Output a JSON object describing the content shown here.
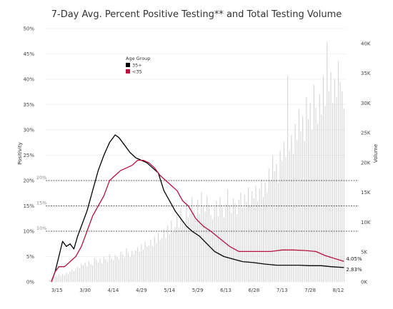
{
  "colors": {
    "bars": "#d4d4d4",
    "older": "#000000",
    "younger": "#b5123f",
    "grid": "#eeeeee",
    "reference": "#333333"
  },
  "chart_data": {
    "type": "line",
    "title": "7-Day Avg. Percent Positive Testing** and Total Testing Volume",
    "ylabel": "Positivity",
    "y2label": "Volume",
    "ylim": [
      0,
      50
    ],
    "y2lim": [
      0,
      42500
    ],
    "x_start": "2020-03-09",
    "x_end": "2020-08-16",
    "x_ticks": [
      {
        "date": "2020-03-15",
        "label": "3/15"
      },
      {
        "date": "2020-03-30",
        "label": "3/30"
      },
      {
        "date": "2020-04-14",
        "label": "4/14"
      },
      {
        "date": "2020-04-29",
        "label": "4/29"
      },
      {
        "date": "2020-05-14",
        "label": "5/14"
      },
      {
        "date": "2020-05-29",
        "label": "5/29"
      },
      {
        "date": "2020-06-13",
        "label": "6/13"
      },
      {
        "date": "2020-06-28",
        "label": "6/28"
      },
      {
        "date": "2020-07-13",
        "label": "7/13"
      },
      {
        "date": "2020-07-28",
        "label": "7/28"
      },
      {
        "date": "2020-08-12",
        "label": "8/12"
      }
    ],
    "y_ticks": [
      {
        "value": 0,
        "label": "0%"
      },
      {
        "value": 5,
        "label": "5%"
      },
      {
        "value": 10,
        "label": "10%"
      },
      {
        "value": 15,
        "label": "15%"
      },
      {
        "value": 20,
        "label": "20%"
      },
      {
        "value": 25,
        "label": "25%"
      },
      {
        "value": 30,
        "label": "30%"
      },
      {
        "value": 35,
        "label": "35%"
      },
      {
        "value": 40,
        "label": "40%"
      },
      {
        "value": 45,
        "label": "45%"
      },
      {
        "value": 50,
        "label": "50%"
      }
    ],
    "y2_ticks": [
      {
        "value": 0,
        "label": "0K"
      },
      {
        "value": 5000,
        "label": "5K"
      },
      {
        "value": 10000,
        "label": "10K"
      },
      {
        "value": 15000,
        "label": "15K"
      },
      {
        "value": 20000,
        "label": "20K"
      },
      {
        "value": 25000,
        "label": "25K"
      },
      {
        "value": 30000,
        "label": "30K"
      },
      {
        "value": 35000,
        "label": "35K"
      },
      {
        "value": 40000,
        "label": "40K"
      }
    ],
    "reference_lines": [
      {
        "value": 20,
        "label": "20%"
      },
      {
        "value": 15,
        "label": "15%"
      },
      {
        "value": 10,
        "label": "10%"
      }
    ],
    "legend": {
      "title": "Age Group",
      "position": "top-left",
      "items": [
        {
          "label": "35+",
          "color": "#000000"
        },
        {
          "label": "<35",
          "color": "#b5123f"
        }
      ]
    },
    "series": [
      {
        "name": "35+",
        "end_label": "2.83%",
        "points": [
          [
            "2020-03-12",
            0
          ],
          [
            "2020-03-14",
            2
          ],
          [
            "2020-03-16",
            5
          ],
          [
            "2020-03-18",
            8
          ],
          [
            "2020-03-20",
            7
          ],
          [
            "2020-03-22",
            7.5
          ],
          [
            "2020-03-24",
            6.5
          ],
          [
            "2020-03-26",
            9
          ],
          [
            "2020-03-28",
            11
          ],
          [
            "2020-03-31",
            14
          ],
          [
            "2020-04-03",
            18
          ],
          [
            "2020-04-06",
            22
          ],
          [
            "2020-04-09",
            25
          ],
          [
            "2020-04-12",
            27.5
          ],
          [
            "2020-04-15",
            29
          ],
          [
            "2020-04-17",
            28.5
          ],
          [
            "2020-04-20",
            27
          ],
          [
            "2020-04-23",
            25.5
          ],
          [
            "2020-04-26",
            24.5
          ],
          [
            "2020-04-29",
            24
          ],
          [
            "2020-05-02",
            23.5
          ],
          [
            "2020-05-05",
            22.5
          ],
          [
            "2020-05-08",
            21.5
          ],
          [
            "2020-05-11",
            18
          ],
          [
            "2020-05-14",
            16
          ],
          [
            "2020-05-17",
            14
          ],
          [
            "2020-05-20",
            12.5
          ],
          [
            "2020-05-23",
            11
          ],
          [
            "2020-05-26",
            10
          ],
          [
            "2020-05-30",
            9
          ],
          [
            "2020-06-03",
            7.5
          ],
          [
            "2020-06-07",
            6
          ],
          [
            "2020-06-12",
            5
          ],
          [
            "2020-06-17",
            4.5
          ],
          [
            "2020-06-22",
            4
          ],
          [
            "2020-06-28",
            3.8
          ],
          [
            "2020-07-04",
            3.5
          ],
          [
            "2020-07-10",
            3.3
          ],
          [
            "2020-07-16",
            3.3
          ],
          [
            "2020-07-22",
            3.3
          ],
          [
            "2020-07-28",
            3.2
          ],
          [
            "2020-08-03",
            3.2
          ],
          [
            "2020-08-08",
            3.0
          ],
          [
            "2020-08-15",
            2.83
          ]
        ]
      },
      {
        "name": "<35",
        "end_label": "4.05%",
        "points": [
          [
            "2020-03-12",
            0
          ],
          [
            "2020-03-14",
            2
          ],
          [
            "2020-03-16",
            3
          ],
          [
            "2020-03-19",
            3
          ],
          [
            "2020-03-22",
            4
          ],
          [
            "2020-03-25",
            5
          ],
          [
            "2020-03-28",
            7
          ],
          [
            "2020-03-31",
            10
          ],
          [
            "2020-04-03",
            13
          ],
          [
            "2020-04-06",
            15
          ],
          [
            "2020-04-09",
            17
          ],
          [
            "2020-04-12",
            20
          ],
          [
            "2020-04-15",
            21
          ],
          [
            "2020-04-18",
            22
          ],
          [
            "2020-04-21",
            22.5
          ],
          [
            "2020-04-24",
            23
          ],
          [
            "2020-04-27",
            24
          ],
          [
            "2020-04-30",
            24
          ],
          [
            "2020-05-03",
            23.5
          ],
          [
            "2020-05-06",
            22.5
          ],
          [
            "2020-05-09",
            21
          ],
          [
            "2020-05-12",
            20
          ],
          [
            "2020-05-15",
            19
          ],
          [
            "2020-05-18",
            18
          ],
          [
            "2020-05-21",
            16
          ],
          [
            "2020-05-24",
            15
          ],
          [
            "2020-05-28",
            12.5
          ],
          [
            "2020-06-01",
            11
          ],
          [
            "2020-06-05",
            10
          ],
          [
            "2020-06-10",
            8.5
          ],
          [
            "2020-06-15",
            7
          ],
          [
            "2020-06-20",
            6
          ],
          [
            "2020-06-25",
            6
          ],
          [
            "2020-07-01",
            6
          ],
          [
            "2020-07-07",
            6
          ],
          [
            "2020-07-13",
            6.3
          ],
          [
            "2020-07-19",
            6.3
          ],
          [
            "2020-07-25",
            6.2
          ],
          [
            "2020-07-31",
            6
          ],
          [
            "2020-08-05",
            5.2
          ],
          [
            "2020-08-10",
            4.6
          ],
          [
            "2020-08-15",
            4.05
          ]
        ]
      }
    ],
    "volume": [
      [
        "2020-03-11",
        300
      ],
      [
        "2020-03-12",
        600
      ],
      [
        "2020-03-13",
        700
      ],
      [
        "2020-03-14",
        900
      ],
      [
        "2020-03-15",
        1000
      ],
      [
        "2020-03-16",
        1200
      ],
      [
        "2020-03-17",
        1000
      ],
      [
        "2020-03-18",
        1300
      ],
      [
        "2020-03-19",
        1100
      ],
      [
        "2020-03-20",
        1500
      ],
      [
        "2020-03-21",
        1300
      ],
      [
        "2020-03-22",
        1700
      ],
      [
        "2020-03-23",
        2000
      ],
      [
        "2020-03-24",
        1800
      ],
      [
        "2020-03-25",
        2200
      ],
      [
        "2020-03-26",
        2500
      ],
      [
        "2020-03-27",
        2300
      ],
      [
        "2020-03-28",
        3000
      ],
      [
        "2020-03-29",
        2800
      ],
      [
        "2020-03-30",
        3200
      ],
      [
        "2020-03-31",
        2600
      ],
      [
        "2020-04-01",
        3500
      ],
      [
        "2020-04-02",
        3000
      ],
      [
        "2020-04-03",
        2800
      ],
      [
        "2020-04-04",
        4000
      ],
      [
        "2020-04-05",
        3700
      ],
      [
        "2020-04-06",
        3300
      ],
      [
        "2020-04-07",
        3900
      ],
      [
        "2020-04-08",
        3100
      ],
      [
        "2020-04-09",
        4200
      ],
      [
        "2020-04-10",
        3800
      ],
      [
        "2020-04-11",
        3400
      ],
      [
        "2020-04-12",
        4600
      ],
      [
        "2020-04-13",
        3900
      ],
      [
        "2020-04-14",
        3600
      ],
      [
        "2020-04-15",
        4500
      ],
      [
        "2020-04-16",
        4200
      ],
      [
        "2020-04-17",
        3800
      ],
      [
        "2020-04-18",
        5000
      ],
      [
        "2020-04-19",
        4600
      ],
      [
        "2020-04-20",
        4100
      ],
      [
        "2020-04-21",
        5600
      ],
      [
        "2020-04-22",
        4900
      ],
      [
        "2020-04-23",
        4200
      ],
      [
        "2020-04-24",
        5200
      ],
      [
        "2020-04-25",
        4600
      ],
      [
        "2020-04-26",
        5300
      ],
      [
        "2020-04-27",
        5800
      ],
      [
        "2020-04-28",
        5000
      ],
      [
        "2020-04-29",
        6300
      ],
      [
        "2020-04-30",
        5400
      ],
      [
        "2020-05-01",
        6700
      ],
      [
        "2020-05-02",
        5900
      ],
      [
        "2020-05-03",
        6100
      ],
      [
        "2020-05-04",
        7000
      ],
      [
        "2020-05-05",
        6000
      ],
      [
        "2020-05-06",
        7600
      ],
      [
        "2020-05-07",
        6500
      ],
      [
        "2020-05-08",
        8200
      ],
      [
        "2020-05-09",
        7000
      ],
      [
        "2020-05-10",
        7400
      ],
      [
        "2020-05-11",
        8800
      ],
      [
        "2020-05-12",
        7300
      ],
      [
        "2020-05-13",
        9400
      ],
      [
        "2020-05-14",
        8000
      ],
      [
        "2020-05-15",
        10300
      ],
      [
        "2020-05-16",
        8400
      ],
      [
        "2020-05-17",
        9200
      ],
      [
        "2020-05-18",
        11000
      ],
      [
        "2020-05-19",
        9100
      ],
      [
        "2020-05-20",
        12300
      ],
      [
        "2020-05-21",
        10000
      ],
      [
        "2020-05-22",
        9500
      ],
      [
        "2020-05-23",
        13000
      ],
      [
        "2020-05-24",
        10800
      ],
      [
        "2020-05-25",
        11500
      ],
      [
        "2020-05-26",
        14200
      ],
      [
        "2020-05-27",
        12000
      ],
      [
        "2020-05-28",
        10600
      ],
      [
        "2020-05-29",
        13800
      ],
      [
        "2020-05-30",
        11400
      ],
      [
        "2020-05-31",
        15000
      ],
      [
        "2020-06-01",
        12600
      ],
      [
        "2020-06-02",
        11800
      ],
      [
        "2020-06-03",
        14400
      ],
      [
        "2020-06-04",
        13000
      ],
      [
        "2020-06-05",
        11200
      ],
      [
        "2020-06-06",
        10500
      ],
      [
        "2020-06-07",
        12600
      ],
      [
        "2020-06-08",
        13600
      ],
      [
        "2020-06-09",
        11000
      ],
      [
        "2020-06-10",
        14200
      ],
      [
        "2020-06-11",
        12400
      ],
      [
        "2020-06-12",
        10800
      ],
      [
        "2020-06-13",
        13000
      ],
      [
        "2020-06-14",
        15500
      ],
      [
        "2020-06-15",
        12800
      ],
      [
        "2020-06-16",
        11500
      ],
      [
        "2020-06-17",
        14000
      ],
      [
        "2020-06-18",
        13200
      ],
      [
        "2020-06-19",
        11400
      ],
      [
        "2020-06-20",
        13800
      ],
      [
        "2020-06-21",
        15000
      ],
      [
        "2020-06-22",
        12500
      ],
      [
        "2020-06-23",
        14600
      ],
      [
        "2020-06-24",
        13400
      ],
      [
        "2020-06-25",
        15800
      ],
      [
        "2020-06-26",
        12800
      ],
      [
        "2020-06-27",
        15200
      ],
      [
        "2020-06-28",
        14000
      ],
      [
        "2020-06-29",
        16200
      ],
      [
        "2020-06-30",
        13500
      ],
      [
        "2020-07-01",
        15600
      ],
      [
        "2020-07-02",
        17200
      ],
      [
        "2020-07-03",
        14200
      ],
      [
        "2020-07-04",
        16600
      ],
      [
        "2020-07-05",
        15000
      ],
      [
        "2020-07-06",
        19000
      ],
      [
        "2020-07-07",
        17000
      ],
      [
        "2020-07-08",
        21200
      ],
      [
        "2020-07-09",
        18500
      ],
      [
        "2020-07-10",
        19800
      ],
      [
        "2020-07-11",
        16500
      ],
      [
        "2020-07-12",
        22000
      ],
      [
        "2020-07-13",
        20200
      ],
      [
        "2020-07-14",
        23500
      ],
      [
        "2020-07-15",
        21000
      ],
      [
        "2020-07-16",
        34500
      ],
      [
        "2020-07-17",
        22000
      ],
      [
        "2020-07-18",
        24600
      ],
      [
        "2020-07-19",
        21500
      ],
      [
        "2020-07-20",
        26500
      ],
      [
        "2020-07-21",
        23800
      ],
      [
        "2020-07-22",
        29000
      ],
      [
        "2020-07-23",
        25200
      ],
      [
        "2020-07-24",
        27800
      ],
      [
        "2020-07-25",
        23600
      ],
      [
        "2020-07-26",
        31000
      ],
      [
        "2020-07-27",
        27300
      ],
      [
        "2020-07-28",
        30000
      ],
      [
        "2020-07-29",
        25500
      ],
      [
        "2020-07-30",
        33000
      ],
      [
        "2020-07-31",
        29200
      ],
      [
        "2020-08-01",
        26500
      ],
      [
        "2020-08-02",
        31500
      ],
      [
        "2020-08-03",
        28000
      ],
      [
        "2020-08-04",
        34500
      ],
      [
        "2020-08-05",
        29500
      ],
      [
        "2020-08-06",
        40200
      ],
      [
        "2020-08-07",
        32000
      ],
      [
        "2020-08-08",
        35200
      ],
      [
        "2020-08-09",
        30000
      ],
      [
        "2020-08-10",
        34000
      ],
      [
        "2020-08-11",
        31000
      ],
      [
        "2020-08-12",
        37000
      ],
      [
        "2020-08-13",
        33500
      ],
      [
        "2020-08-14",
        32000
      ],
      [
        "2020-08-15",
        29000
      ]
    ]
  }
}
